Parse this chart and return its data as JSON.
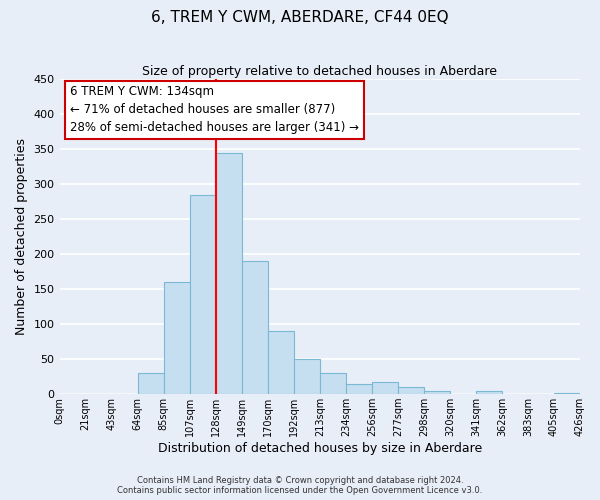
{
  "title": "6, TREM Y CWM, ABERDARE, CF44 0EQ",
  "subtitle": "Size of property relative to detached houses in Aberdare",
  "xlabel": "Distribution of detached houses by size in Aberdare",
  "ylabel": "Number of detached properties",
  "bar_color": "#c5dff0",
  "bar_edge_color": "#7ab8d4",
  "background_color": "#e8eef8",
  "grid_color": "white",
  "vline_x": 6,
  "vline_color": "red",
  "bar_heights": [
    0,
    0,
    0,
    30,
    160,
    285,
    345,
    190,
    90,
    50,
    30,
    15,
    18,
    10,
    5,
    0,
    5,
    0,
    0,
    2
  ],
  "tick_labels": [
    "0sqm",
    "21sqm",
    "43sqm",
    "64sqm",
    "85sqm",
    "107sqm",
    "128sqm",
    "149sqm",
    "170sqm",
    "192sqm",
    "213sqm",
    "234sqm",
    "256sqm",
    "277sqm",
    "298sqm",
    "320sqm",
    "341sqm",
    "362sqm",
    "383sqm",
    "405sqm",
    "426sqm"
  ],
  "ylim": [
    0,
    450
  ],
  "yticks": [
    0,
    50,
    100,
    150,
    200,
    250,
    300,
    350,
    400,
    450
  ],
  "annotation_title": "6 TREM Y CWM: 134sqm",
  "annotation_line1": "← 71% of detached houses are smaller (877)",
  "annotation_line2": "28% of semi-detached houses are larger (341) →",
  "footer1": "Contains HM Land Registry data © Crown copyright and database right 2024.",
  "footer2": "Contains public sector information licensed under the Open Government Licence v3.0."
}
